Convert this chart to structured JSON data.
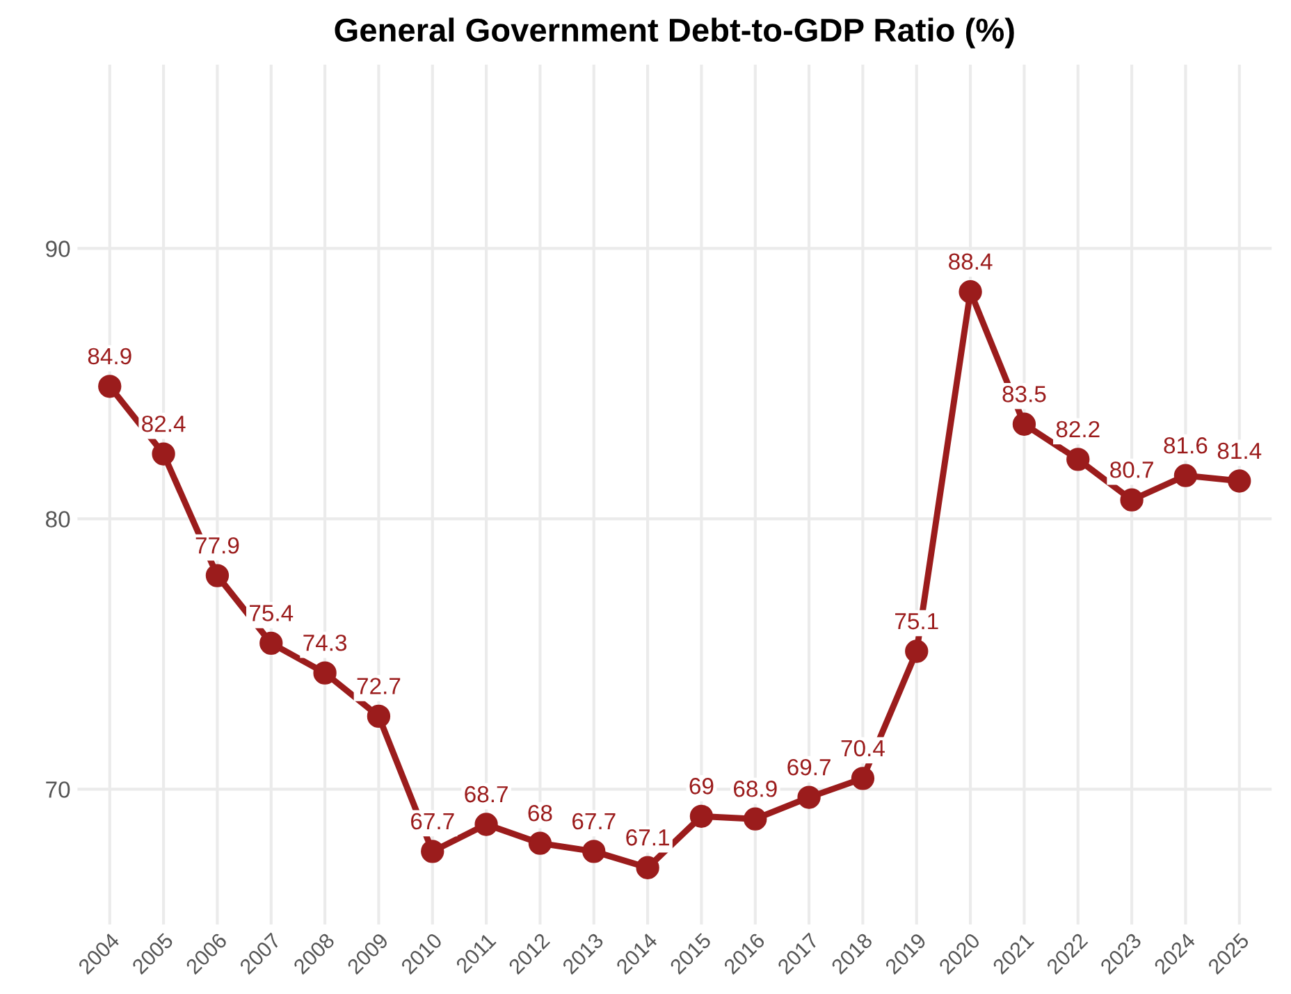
{
  "chart_data": {
    "type": "line",
    "title": "General Government Debt-to-GDP Ratio (%)",
    "categories": [
      "2004",
      "2005",
      "2006",
      "2007",
      "2008",
      "2009",
      "2010",
      "2011",
      "2012",
      "2013",
      "2014",
      "2015",
      "2016",
      "2017",
      "2018",
      "2019",
      "2020",
      "2021",
      "2022",
      "2023",
      "2024",
      "2025"
    ],
    "series": [
      {
        "color": "#9b1c1c",
        "values": [
          84.9,
          82.4,
          77.9,
          75.4,
          74.3,
          72.7,
          67.7,
          68.7,
          68,
          67.7,
          67.1,
          69,
          68.9,
          69.7,
          70.4,
          75.1,
          88.4,
          83.5,
          82.2,
          80.7,
          81.6,
          81.4
        ]
      }
    ],
    "ylim": [
      65,
      96.8
    ],
    "yticks": [
      70,
      80,
      90
    ],
    "grid": true,
    "marker": "circle",
    "line_style": "solid",
    "data_labels": true
  }
}
